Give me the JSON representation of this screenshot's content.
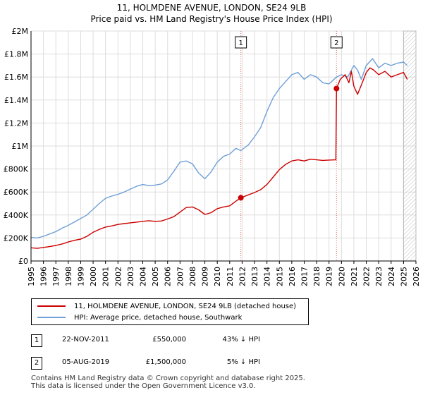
{
  "chart_data": {
    "type": "line",
    "title": "11, HOLMDENE AVENUE, LONDON, SE24 9LB",
    "subtitle": "Price paid vs. HM Land Registry's House Price Index (HPI)",
    "xlabel": "",
    "ylabel": "",
    "xlim": [
      1995,
      2026
    ],
    "ylim": [
      0,
      2000000
    ],
    "y_ticks": [
      0,
      200000,
      400000,
      600000,
      800000,
      1000000,
      1200000,
      1400000,
      1600000,
      1800000,
      2000000
    ],
    "y_tick_labels": [
      "£0",
      "£200K",
      "£400K",
      "£600K",
      "£800K",
      "£1M",
      "£1.2M",
      "£1.4M",
      "£1.6M",
      "£1.8M",
      "£2M"
    ],
    "x_ticks": [
      1995,
      1996,
      1997,
      1998,
      1999,
      2000,
      2001,
      2002,
      2003,
      2004,
      2005,
      2006,
      2007,
      2008,
      2009,
      2010,
      2011,
      2012,
      2013,
      2014,
      2015,
      2016,
      2017,
      2018,
      2019,
      2020,
      2021,
      2022,
      2023,
      2024,
      2025,
      2026
    ],
    "x_tick_labels": [
      "1995",
      "1996",
      "1997",
      "1998",
      "1999",
      "2000",
      "2001",
      "2002",
      "2003",
      "2004",
      "2005",
      "2006",
      "2007",
      "2008",
      "2009",
      "2010",
      "2011",
      "2012",
      "2013",
      "2014",
      "2015",
      "2016",
      "2017",
      "2018",
      "2019",
      "2020",
      "2021",
      "2022",
      "2023",
      "2024",
      "2025",
      "2026"
    ],
    "grid": true,
    "hatched_future_from": 2025.0,
    "series": [
      {
        "name": "11, HOLMDENE AVENUE, LONDON, SE24 9LB (detached house)",
        "color": "#cc0000",
        "x": [
          1995.0,
          1995.5,
          1996.0,
          1996.5,
          1997.0,
          1997.5,
          1998.0,
          1998.5,
          1999.0,
          1999.5,
          2000.0,
          2000.5,
          2001.0,
          2001.5,
          2002.0,
          2002.5,
          2003.0,
          2003.5,
          2004.0,
          2004.5,
          2005.0,
          2005.5,
          2006.0,
          2006.5,
          2007.0,
          2007.5,
          2008.0,
          2008.5,
          2009.0,
          2009.5,
          2010.0,
          2010.5,
          2011.0,
          2011.5,
          2011.9,
          2012.5,
          2013.0,
          2013.5,
          2014.0,
          2014.5,
          2015.0,
          2015.5,
          2016.0,
          2016.5,
          2017.0,
          2017.5,
          2018.0,
          2018.5,
          2019.0,
          2019.55,
          2019.6,
          2019.9,
          2020.3,
          2020.6,
          2020.8,
          2021.0,
          2021.3,
          2021.6,
          2022.0,
          2022.3,
          2022.6,
          2023.0,
          2023.5,
          2024.0,
          2024.5,
          2025.0,
          2025.3
        ],
        "values": [
          115000,
          110000,
          118000,
          125000,
          135000,
          148000,
          165000,
          180000,
          190000,
          215000,
          250000,
          275000,
          295000,
          305000,
          318000,
          325000,
          332000,
          338000,
          345000,
          350000,
          345000,
          348000,
          365000,
          385000,
          425000,
          465000,
          470000,
          445000,
          405000,
          420000,
          455000,
          470000,
          480000,
          520000,
          550000,
          575000,
          595000,
          620000,
          665000,
          730000,
          795000,
          840000,
          870000,
          880000,
          870000,
          885000,
          880000,
          875000,
          878000,
          880000,
          1500000,
          1580000,
          1620000,
          1550000,
          1650000,
          1520000,
          1450000,
          1530000,
          1640000,
          1680000,
          1660000,
          1620000,
          1650000,
          1600000,
          1620000,
          1640000,
          1580000
        ]
      },
      {
        "name": "HPI: Average price, detached house, Southwark",
        "color": "#6f9fd8",
        "x": [
          1995.0,
          1995.5,
          1996.0,
          1996.5,
          1997.0,
          1997.5,
          1998.0,
          1998.5,
          1999.0,
          1999.5,
          2000.0,
          2000.5,
          2001.0,
          2001.5,
          2002.0,
          2002.5,
          2003.0,
          2003.5,
          2004.0,
          2004.5,
          2005.0,
          2005.5,
          2006.0,
          2006.5,
          2007.0,
          2007.5,
          2008.0,
          2008.5,
          2009.0,
          2009.5,
          2010.0,
          2010.5,
          2011.0,
          2011.5,
          2011.9,
          2012.5,
          2013.0,
          2013.5,
          2014.0,
          2014.5,
          2015.0,
          2015.5,
          2016.0,
          2016.5,
          2017.0,
          2017.5,
          2018.0,
          2018.5,
          2019.0,
          2019.6,
          2020.0,
          2020.5,
          2021.0,
          2021.3,
          2021.6,
          2022.0,
          2022.5,
          2023.0,
          2023.5,
          2024.0,
          2024.5,
          2025.0,
          2025.3
        ],
        "values": [
          205000,
          200000,
          215000,
          235000,
          255000,
          285000,
          310000,
          340000,
          370000,
          400000,
          450000,
          500000,
          545000,
          565000,
          580000,
          600000,
          625000,
          650000,
          665000,
          655000,
          660000,
          670000,
          705000,
          780000,
          860000,
          870000,
          845000,
          765000,
          715000,
          775000,
          860000,
          910000,
          930000,
          980000,
          960000,
          1010000,
          1080000,
          1160000,
          1300000,
          1420000,
          1500000,
          1560000,
          1620000,
          1640000,
          1580000,
          1620000,
          1600000,
          1550000,
          1540000,
          1600000,
          1620000,
          1600000,
          1700000,
          1660000,
          1580000,
          1700000,
          1760000,
          1680000,
          1720000,
          1700000,
          1720000,
          1730000,
          1700000
        ]
      }
    ],
    "markers": [
      {
        "label": "1",
        "x": 2011.9,
        "value": 550000
      },
      {
        "label": "2",
        "x": 2019.6,
        "value": 1500000
      }
    ]
  },
  "legend": {
    "series1": "11, HOLMDENE AVENUE, LONDON, SE24 9LB (detached house)",
    "series2": "HPI: Average price, detached house, Southwark"
  },
  "transactions": [
    {
      "num": "1",
      "date": "22-NOV-2011",
      "price": "£550,000",
      "hpi": "43% ↓ HPI"
    },
    {
      "num": "2",
      "date": "05-AUG-2019",
      "price": "£1,500,000",
      "hpi": "5% ↓ HPI"
    }
  ],
  "footer": {
    "line1": "Contains HM Land Registry data © Crown copyright and database right 2025.",
    "line2": "This data is licensed under the Open Government Licence v3.0."
  }
}
